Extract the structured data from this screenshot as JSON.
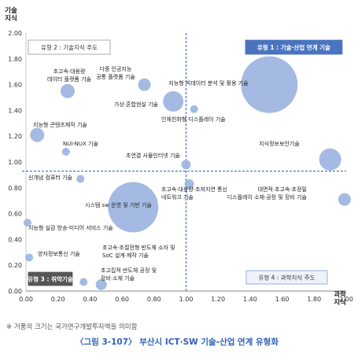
{
  "chart_data": {
    "type": "scatter",
    "bubble": true,
    "ylabel": "기술\n지식",
    "xlabel": "과학\n지식",
    "xlim": [
      0,
      2.0
    ],
    "ylim": [
      0,
      2.0
    ],
    "x_ticks": [
      "0.00",
      "0.20",
      "0.40",
      "0.60",
      "0.80",
      "1.00",
      "1.20",
      "1.40",
      "1.60",
      "1.80",
      "2.00"
    ],
    "y_ticks": [
      "0.00",
      "0.20",
      "0.40",
      "0.60",
      "0.80",
      "1.00",
      "1.20",
      "1.40",
      "1.60",
      "1.80",
      "2.00"
    ],
    "divider_x": 1.0,
    "divider_y": 0.93,
    "grid": false,
    "bubble_color": "#9db4e0",
    "points": [
      {
        "label": "초고속·대용량\n데이터 플랫폼 기술",
        "x": 0.26,
        "y": 1.55,
        "size": 9
      },
      {
        "label": "다중 인공지능\n공통 플랫폼 기술",
        "x": 0.74,
        "y": 1.6,
        "size": 8
      },
      {
        "label": "지능형 빅데이터 분석 및 활용 기술",
        "x": 1.52,
        "y": 1.6,
        "size": 36
      },
      {
        "label": "가상·혼합현실 기술",
        "x": 0.92,
        "y": 1.47,
        "size": 13
      },
      {
        "label": "인체친화형 디스플레이 기술",
        "x": 1.05,
        "y": 1.41,
        "size": 5
      },
      {
        "label": "지능형 콘텐츠제작 기술",
        "x": 0.07,
        "y": 1.21,
        "size": 9
      },
      {
        "label": "NUI·NUX 기술",
        "x": 0.25,
        "y": 1.08,
        "size": 5
      },
      {
        "label": "지식정보보안기술",
        "x": 1.9,
        "y": 1.02,
        "size": 14
      },
      {
        "label": "초연결 사물인터넷 기술",
        "x": 1.0,
        "y": 0.98,
        "size": 6
      },
      {
        "label": "신개념 컴퓨터 기술",
        "x": 0.34,
        "y": 0.87,
        "size": 5
      },
      {
        "label": "초고속·대용량·초저지연 통신\n네트워크 기술",
        "x": 1.02,
        "y": 0.83,
        "size": 6
      },
      {
        "label": "시스템 sw 운영 및 기반 기술",
        "x": 0.67,
        "y": 0.65,
        "size": 32
      },
      {
        "label": "대면적·초고속·초정밀\n디스플레이 소재·공정 및 장비 기술",
        "x": 2.0,
        "y": 0.71,
        "size": 8
      },
      {
        "label": "지능형 실감 방송·미디어 서비스 기술",
        "x": 0.0,
        "y": 0.53,
        "size": 5
      },
      {
        "label": "양자정보통신 기술",
        "x": 0.02,
        "y": 0.26,
        "size": 5
      },
      {
        "label": "초고속·초절전형 반도체 소자 및\nSoC 설계·제작 기술",
        "x": 0.36,
        "y": 0.07,
        "size": 5
      },
      {
        "label": "초고집적 반도체 공정 및\n장비·소재 기술",
        "x": 0.47,
        "y": 0.05,
        "size": 7
      }
    ],
    "quadrants": [
      {
        "label": "유형 1 : 기술·산업 연계 기술",
        "position": "top-right",
        "style": "filled-blue"
      },
      {
        "label": "유형 2 : 기술지식 주도",
        "position": "top-left",
        "style": "outline-gray"
      },
      {
        "label": "유형 3 : 취약기술",
        "position": "bottom-left",
        "style": "filled-gray"
      },
      {
        "label": "유형 4 : 과학지식 주도",
        "position": "bottom-right",
        "style": "outline-blue"
      }
    ],
    "colors": {
      "bubble": "#9db4e0",
      "divider": "#2f62b8",
      "quadrant1_fill": "#4a74bf",
      "quadrant3_fill": "#555555",
      "caption": "#2f62b8"
    }
  },
  "footnote": "※ 거품의 크기는 국가연구개발투자액을 의미함",
  "caption": "〈그림 3-107〉 부산시 ICT·SW 기술-산업 연계 유형화"
}
